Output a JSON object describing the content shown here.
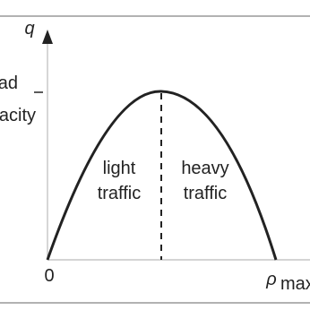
{
  "axis": {
    "y_label": "q",
    "origin_label": "0",
    "x_max_label": "ρ",
    "x_max_subscript": "max"
  },
  "capacity_label": [
    "ad",
    "acity"
  ],
  "regions": [
    {
      "lines": [
        "light",
        "traffic"
      ]
    },
    {
      "lines": [
        "heavy",
        "traffic"
      ]
    }
  ]
}
